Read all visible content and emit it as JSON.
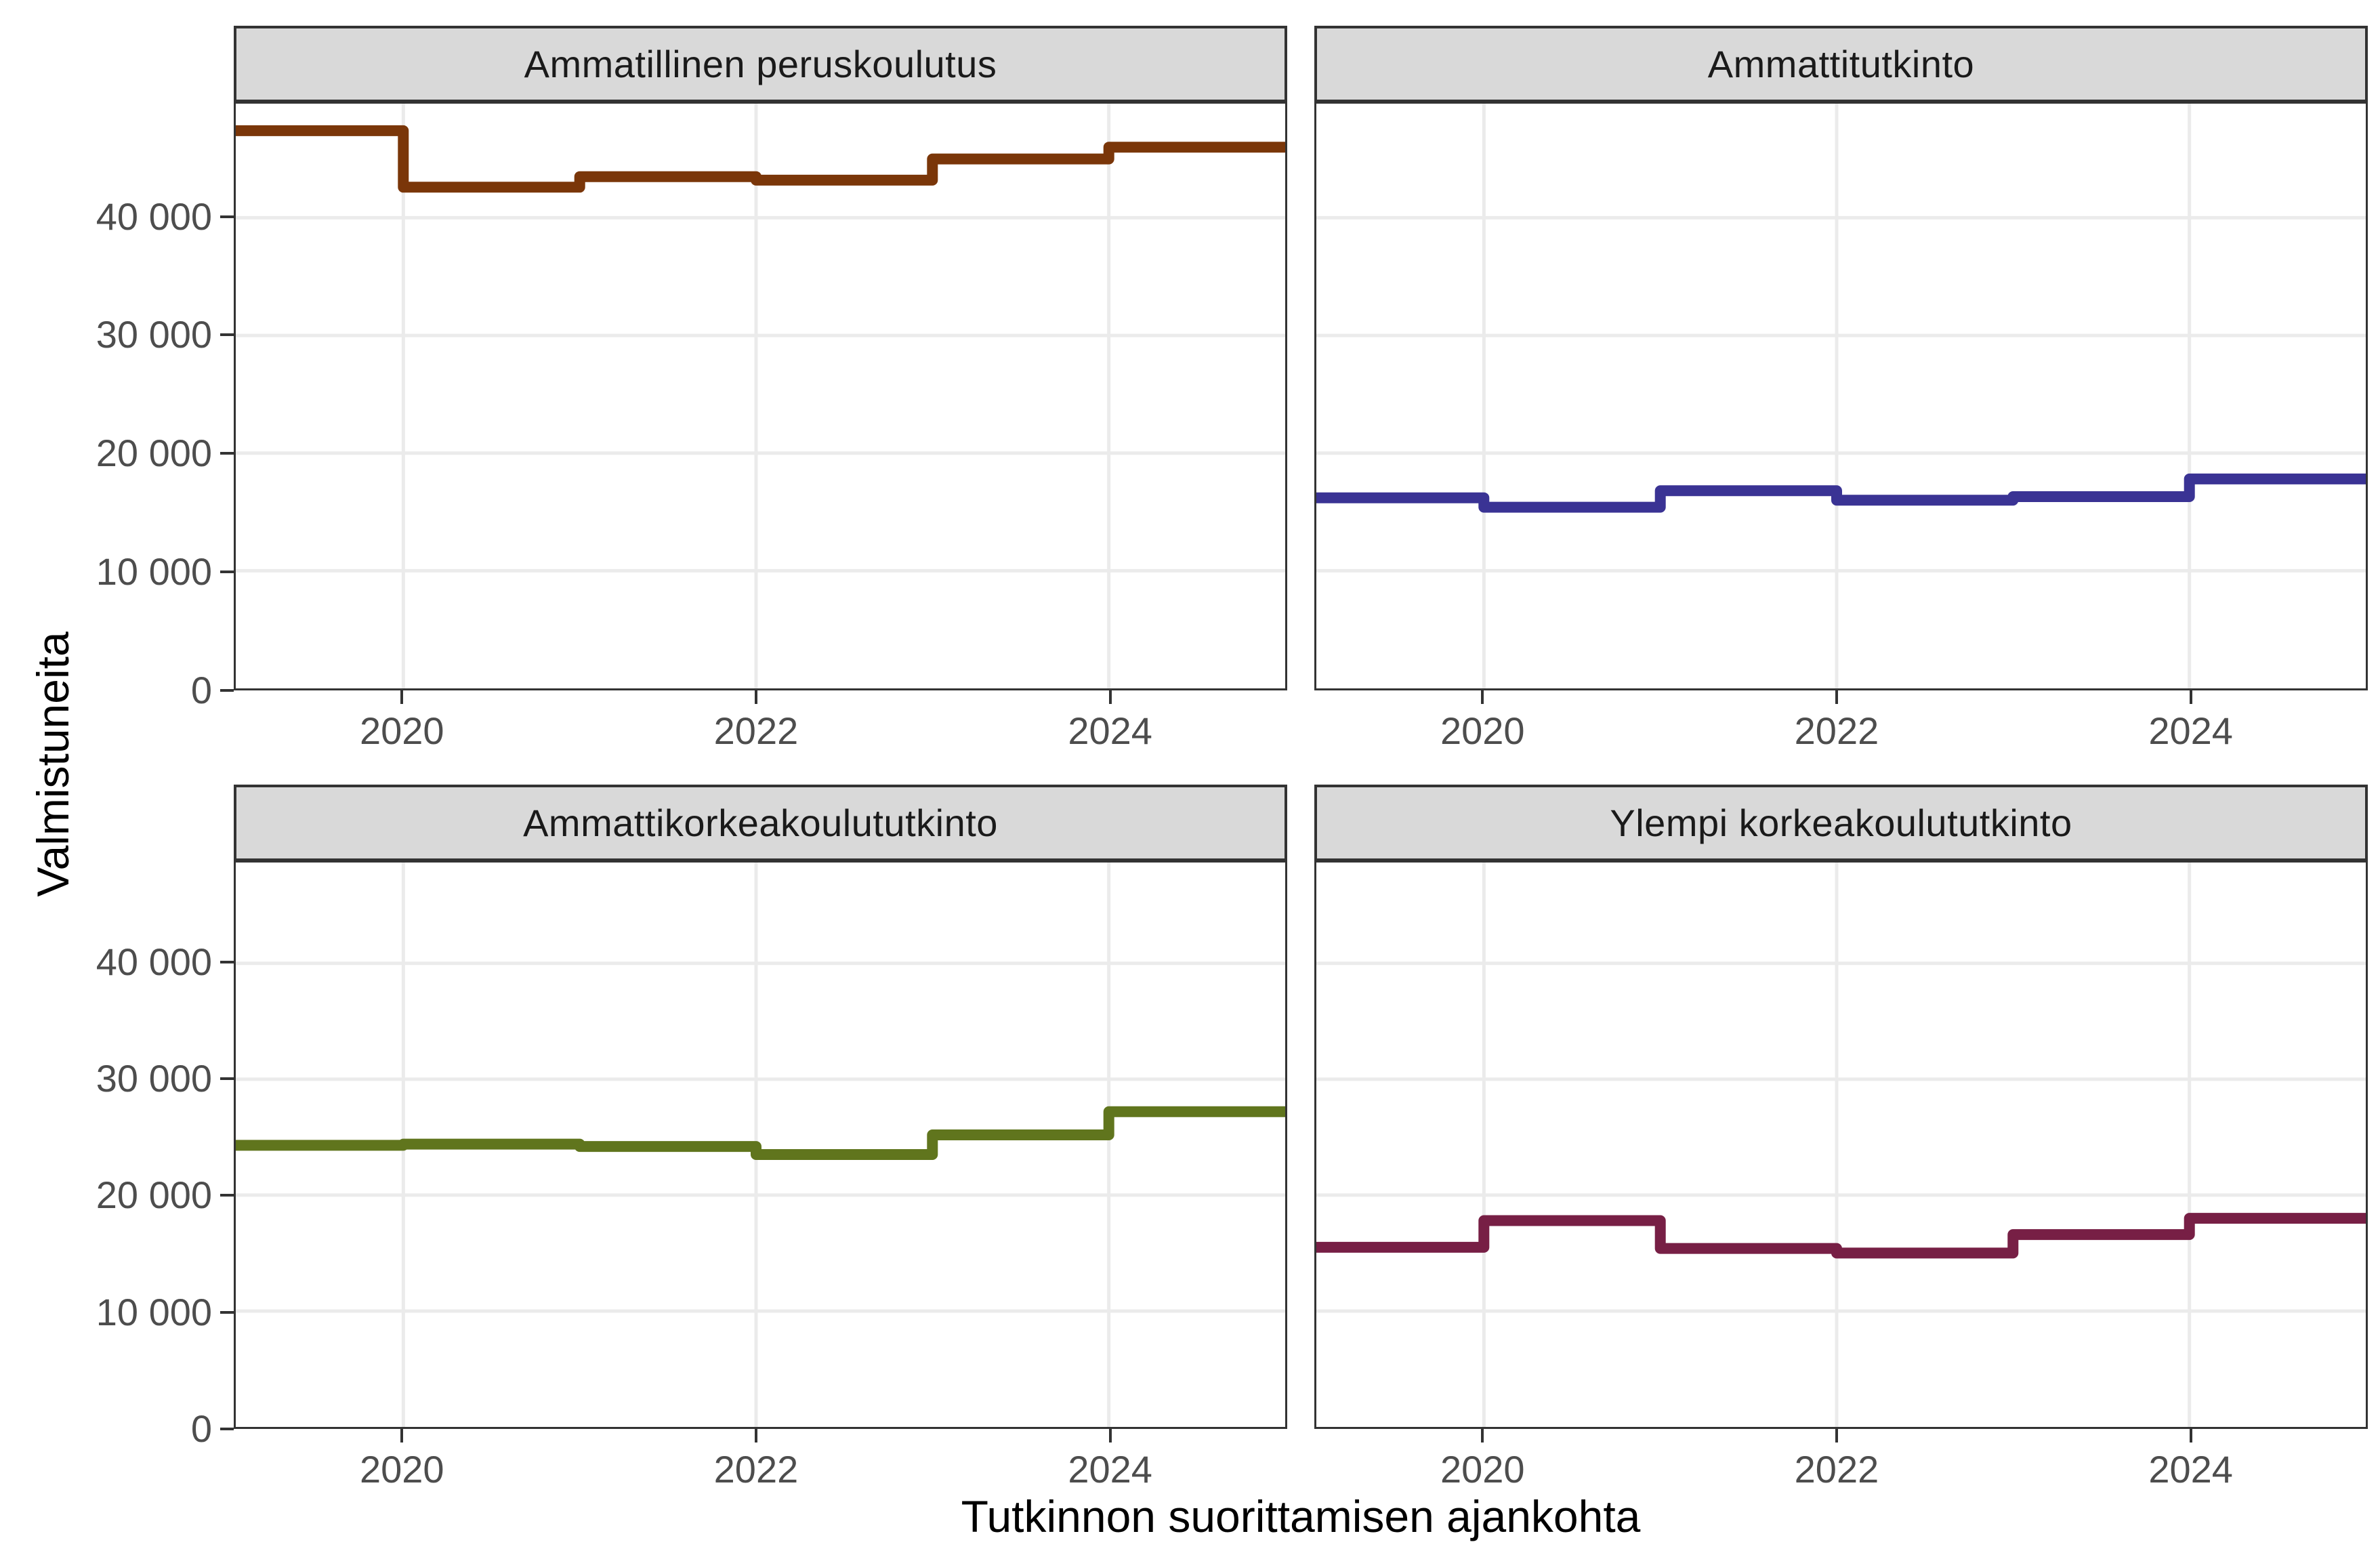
{
  "chart_data": {
    "type": "line",
    "subtype": "step",
    "title": "",
    "xlabel": "Tutkinnon suorittamisen ajankohta",
    "ylabel": "Valmistuneita",
    "x": [
      2019,
      2020,
      2021,
      2022,
      2023,
      2024
    ],
    "x_range": [
      2019.05,
      2025.0
    ],
    "x_ticks": [
      {
        "value": 2020,
        "label": "2020"
      },
      {
        "value": 2022,
        "label": "2022"
      },
      {
        "value": 2024,
        "label": "2024"
      }
    ],
    "y_ticks": [
      {
        "value": 0,
        "label": "0"
      },
      {
        "value": 10000,
        "label": "10 000"
      },
      {
        "value": 20000,
        "label": "20 000"
      },
      {
        "value": 30000,
        "label": "30 000"
      },
      {
        "value": 40000,
        "label": "40 000"
      }
    ],
    "grid": true,
    "legend": false,
    "facets": [
      {
        "title": "Ammatillinen peruskoulutus",
        "color": "#7A3609",
        "values": [
          47400,
          42600,
          43500,
          43200,
          45000,
          46000
        ],
        "ylim": [
          0,
          49700
        ]
      },
      {
        "title": "Ammattitutkinto",
        "color": "#3A3394",
        "values": [
          16200,
          15400,
          16800,
          16000,
          16300,
          17800
        ],
        "ylim": [
          0,
          49700
        ]
      },
      {
        "title": "Ammattikorkeakoulututkinto",
        "color": "#60751D",
        "values": [
          24300,
          24400,
          24200,
          23500,
          25200,
          27200
        ],
        "ylim": [
          0,
          48700
        ]
      },
      {
        "title": "Ylempi korkeakoulututkinto",
        "color": "#771F45",
        "values": [
          15500,
          17800,
          15400,
          15000,
          16600,
          18000
        ],
        "ylim": [
          0,
          48700
        ]
      }
    ],
    "styles": {
      "grid_color": "#EBEBEB",
      "strip_fill": "#D9D9D9",
      "border_color": "#333333",
      "tick_label_color": "#4D4D4D",
      "title_color": "#000000",
      "line_width": 16
    }
  }
}
